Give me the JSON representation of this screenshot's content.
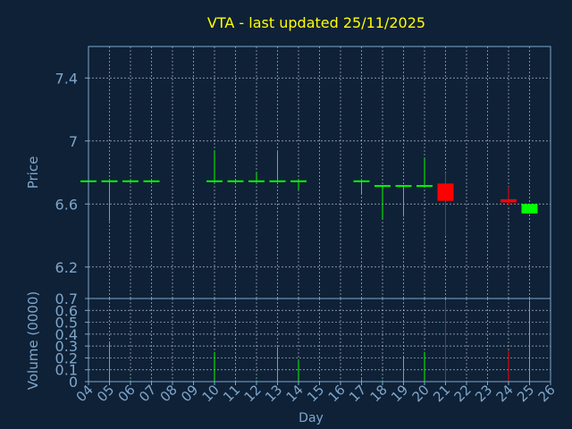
{
  "title": "VTA - last updated 25/11/2025",
  "colors": {
    "background": "#0f2136",
    "title": "#ffff00",
    "axis_text": "#7ea6cc",
    "grid": "#c8d4e0",
    "frame": "#7ea6cc",
    "up": "#00ff00",
    "down": "#ff0000",
    "neutral": "#00ff00"
  },
  "chart_data": [
    {
      "type": "candlestick",
      "ylabel": "Price",
      "ylim": [
        6.0,
        7.6
      ],
      "yticks": [
        6.2,
        6.6,
        7,
        7.4
      ],
      "ytick_labels": [
        "6.2",
        "6.6",
        "7",
        "7.4"
      ],
      "grid": true,
      "candles": [
        {
          "day": 4,
          "open": 6.75,
          "high": 6.75,
          "low": 6.75,
          "close": 6.75
        },
        {
          "day": 5,
          "open": 6.75,
          "high": 6.75,
          "low": 6.49,
          "close": 6.75
        },
        {
          "day": 6,
          "open": 6.75,
          "high": 6.75,
          "low": 6.75,
          "close": 6.75
        },
        {
          "day": 7,
          "open": 6.75,
          "high": 6.76,
          "low": 6.75,
          "close": 6.75
        },
        {
          "day": 10,
          "open": 6.75,
          "high": 6.94,
          "low": 6.75,
          "close": 6.75
        },
        {
          "day": 11,
          "open": 6.75,
          "high": 6.75,
          "low": 6.75,
          "close": 6.75
        },
        {
          "day": 12,
          "open": 6.75,
          "high": 6.8,
          "low": 6.75,
          "close": 6.75
        },
        {
          "day": 13,
          "open": 6.75,
          "high": 6.93,
          "low": 6.75,
          "close": 6.75
        },
        {
          "day": 14,
          "open": 6.75,
          "high": 6.75,
          "low": 6.69,
          "close": 6.75
        },
        {
          "day": 17,
          "open": 6.75,
          "high": 6.75,
          "low": 6.66,
          "close": 6.75
        },
        {
          "day": 18,
          "open": 6.72,
          "high": 6.72,
          "low": 6.5,
          "close": 6.72
        },
        {
          "day": 19,
          "open": 6.72,
          "high": 6.72,
          "low": 6.52,
          "close": 6.72
        },
        {
          "day": 20,
          "open": 6.72,
          "high": 6.89,
          "low": 6.72,
          "close": 6.72
        },
        {
          "day": 21,
          "open": 6.73,
          "high": 6.8,
          "low": 6.4,
          "close": 6.62
        },
        {
          "day": 24,
          "open": 6.63,
          "high": 6.71,
          "low": 6.59,
          "close": 6.61
        },
        {
          "day": 25,
          "open": 6.54,
          "high": 6.6,
          "low": 6.54,
          "close": 6.6
        }
      ]
    },
    {
      "type": "bar",
      "ylabel": "Volume (0000)",
      "xlabel": "Day",
      "ylim": [
        0,
        0.7
      ],
      "yticks": [
        0,
        0.1,
        0.2,
        0.3,
        0.4,
        0.5,
        0.6,
        0.7
      ],
      "ytick_labels": [
        "0",
        "0.1",
        "0.2",
        "0.3",
        "0.4",
        "0.5",
        "0.6",
        "0.7"
      ],
      "xlim": [
        4,
        26
      ],
      "xticks": [
        4,
        5,
        6,
        7,
        8,
        9,
        10,
        11,
        12,
        13,
        14,
        15,
        16,
        17,
        18,
        19,
        20,
        21,
        22,
        23,
        24,
        25,
        26
      ],
      "xtick_labels": [
        "04",
        "05",
        "06",
        "07",
        "08",
        "09",
        "10",
        "11",
        "12",
        "13",
        "14",
        "15",
        "16",
        "17",
        "18",
        "19",
        "20",
        "21",
        "22",
        "23",
        "24",
        "25",
        "26"
      ],
      "grid": true,
      "bars": [
        {
          "day": 4,
          "value": 0.01,
          "dir": "up"
        },
        {
          "day": 5,
          "value": 0.34,
          "dir": "up"
        },
        {
          "day": 6,
          "value": 0.01,
          "dir": "up"
        },
        {
          "day": 7,
          "value": 0.01,
          "dir": "up"
        },
        {
          "day": 10,
          "value": 0.25,
          "dir": "up"
        },
        {
          "day": 11,
          "value": 0.01,
          "dir": "up"
        },
        {
          "day": 12,
          "value": 0.01,
          "dir": "up"
        },
        {
          "day": 13,
          "value": 0.29,
          "dir": "up"
        },
        {
          "day": 14,
          "value": 0.18,
          "dir": "up"
        },
        {
          "day": 17,
          "value": 0.02,
          "dir": "up"
        },
        {
          "day": 18,
          "value": 0.01,
          "dir": "up"
        },
        {
          "day": 19,
          "value": 0.21,
          "dir": "up"
        },
        {
          "day": 20,
          "value": 0.25,
          "dir": "up"
        },
        {
          "day": 21,
          "value": 0.68,
          "dir": "down"
        },
        {
          "day": 24,
          "value": 0.26,
          "dir": "down"
        },
        {
          "day": 25,
          "value": 0.68,
          "dir": "up"
        }
      ]
    }
  ]
}
